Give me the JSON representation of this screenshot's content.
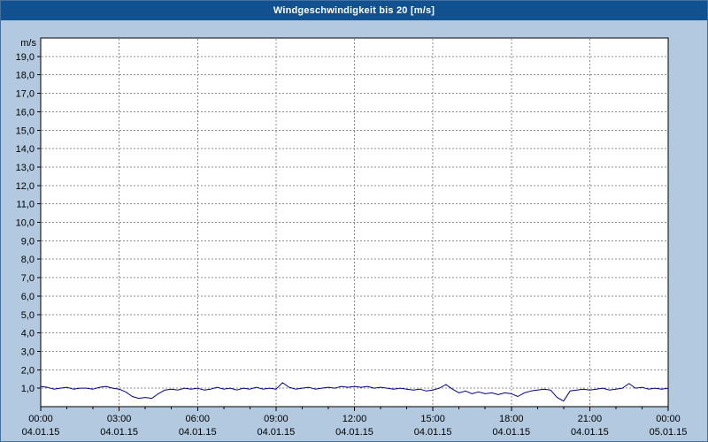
{
  "title": "Windgeschwindigkeit bis 20 [m/s]",
  "colors": {
    "background": "#b3c9e0",
    "titlebar": "#11518f",
    "titlebar_text": "#ffffff",
    "plot_bg": "#ffffff",
    "grid": "#8c8c8c",
    "axis": "#000000",
    "line": "#00008b"
  },
  "chart_data": {
    "type": "line",
    "title": "Windgeschwindigkeit bis 20 [m/s]",
    "xlabel": "",
    "ylabel": "m/s",
    "ylim": [
      0,
      20
    ],
    "xlim_hours": [
      0,
      24
    ],
    "grid": true,
    "legend": "none",
    "x_minor_tick_every_hours": 1,
    "y_ticks": [
      {
        "value": 1,
        "label": "1,0"
      },
      {
        "value": 2,
        "label": "2,0"
      },
      {
        "value": 3,
        "label": "3,0"
      },
      {
        "value": 4,
        "label": "4,0"
      },
      {
        "value": 5,
        "label": "5,0"
      },
      {
        "value": 6,
        "label": "6,0"
      },
      {
        "value": 7,
        "label": "7,0"
      },
      {
        "value": 8,
        "label": "8,0"
      },
      {
        "value": 9,
        "label": "9,0"
      },
      {
        "value": 10,
        "label": "10,0"
      },
      {
        "value": 11,
        "label": "11,0"
      },
      {
        "value": 12,
        "label": "12,0"
      },
      {
        "value": 13,
        "label": "13,0"
      },
      {
        "value": 14,
        "label": "14,0"
      },
      {
        "value": 15,
        "label": "15,0"
      },
      {
        "value": 16,
        "label": "16,0"
      },
      {
        "value": 17,
        "label": "17,0"
      },
      {
        "value": 18,
        "label": "18,0"
      },
      {
        "value": 19,
        "label": "19,0"
      }
    ],
    "x_ticks": [
      {
        "hour": 0,
        "time": "00:00",
        "date": "04.01.15"
      },
      {
        "hour": 3,
        "time": "03:00",
        "date": "04.01.15"
      },
      {
        "hour": 6,
        "time": "06:00",
        "date": "04.01.15"
      },
      {
        "hour": 9,
        "time": "09:00",
        "date": "04.01.15"
      },
      {
        "hour": 12,
        "time": "12:00",
        "date": "04.01.15"
      },
      {
        "hour": 15,
        "time": "15:00",
        "date": "04.01.15"
      },
      {
        "hour": 18,
        "time": "18:00",
        "date": "04.01.15"
      },
      {
        "hour": 21,
        "time": "21:00",
        "date": "04.01.15"
      },
      {
        "hour": 24,
        "time": "00:00",
        "date": "05.01.15"
      }
    ],
    "series": [
      {
        "name": "Windgeschwindigkeit",
        "x_start": 0,
        "x_step_hours": 0.25,
        "values": [
          1.1,
          1.05,
          0.95,
          1.0,
          1.05,
          0.95,
          1.0,
          1.0,
          0.95,
          1.05,
          1.1,
          1.0,
          0.95,
          0.8,
          0.55,
          0.45,
          0.5,
          0.45,
          0.7,
          0.9,
          0.95,
          0.9,
          1.0,
          0.95,
          1.0,
          0.9,
          0.95,
          1.05,
          0.95,
          1.0,
          0.9,
          1.0,
          0.95,
          1.05,
          0.95,
          1.0,
          0.95,
          1.3,
          1.05,
          0.95,
          1.0,
          1.05,
          0.95,
          1.0,
          1.05,
          1.0,
          1.1,
          1.05,
          1.1,
          1.05,
          1.1,
          1.0,
          1.05,
          1.0,
          0.95,
          1.0,
          0.95,
          0.9,
          0.95,
          0.85,
          0.9,
          1.0,
          1.2,
          0.95,
          0.75,
          0.85,
          0.7,
          0.8,
          0.7,
          0.75,
          0.65,
          0.75,
          0.7,
          0.55,
          0.75,
          0.85,
          0.9,
          0.95,
          0.9,
          0.5,
          0.3,
          0.85,
          0.9,
          0.95,
          0.9,
          0.95,
          1.0,
          0.9,
          0.95,
          1.0,
          1.25,
          1.0,
          1.05,
          0.95,
          1.0,
          0.95,
          1.0
        ]
      }
    ]
  }
}
